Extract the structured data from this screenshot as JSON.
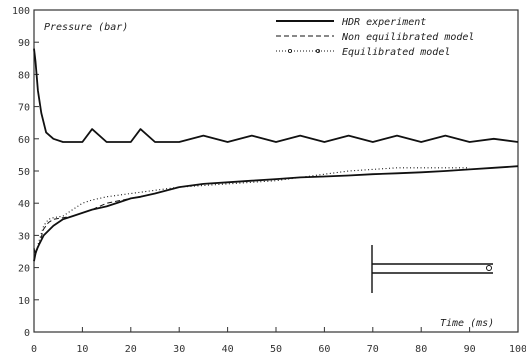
{
  "chart_data": {
    "type": "line",
    "ylabel": "Pressure (bar)",
    "xlabel": "Time (ms)",
    "xlim": [
      0,
      100
    ],
    "ylim": [
      0,
      100
    ],
    "xticks": [
      "0",
      "10",
      "20",
      "30",
      "40",
      "50",
      "60",
      "70",
      "80",
      "90",
      "100"
    ],
    "yticks": [
      "0",
      "10",
      "20",
      "30",
      "40",
      "50",
      "60",
      "70",
      "80",
      "90",
      "100"
    ],
    "grid": false,
    "legend_position": "top-right",
    "series": [
      {
        "name": "HDR experiment",
        "style": "solid",
        "x": [
          0,
          0.3,
          0.8,
          1.5,
          2.5,
          4,
          6,
          8,
          10,
          12,
          15,
          18,
          20,
          22,
          25,
          30,
          35,
          40,
          45,
          50,
          55,
          60,
          65,
          70,
          75,
          80,
          85,
          90,
          95,
          100
        ],
        "y": [
          88,
          84,
          75,
          68,
          62,
          60,
          59,
          59,
          59,
          63,
          59,
          59,
          59,
          63,
          59,
          59,
          61,
          59,
          61,
          59,
          61,
          59,
          61,
          59,
          61,
          59,
          61,
          59,
          60,
          59
        ]
      },
      {
        "name": "HDR experiment",
        "style": "solid",
        "x": [
          0,
          0.4,
          1,
          2,
          4,
          6,
          8,
          10,
          12,
          15,
          18,
          20,
          22,
          25,
          30,
          35,
          40,
          45,
          50,
          55,
          60,
          65,
          70,
          75,
          80,
          85,
          90,
          95,
          100
        ],
        "y": [
          22,
          25,
          27,
          30,
          33,
          35,
          36,
          37,
          38,
          39,
          40.5,
          41.5,
          42,
          43,
          45,
          46,
          46.5,
          47,
          47.5,
          48,
          48.3,
          48.6,
          49,
          49.3,
          49.6,
          50,
          50.5,
          51,
          51.5
        ]
      },
      {
        "name": "Non equilibrated model",
        "style": "dashed",
        "x": [
          0,
          0.3,
          1,
          2,
          3,
          4,
          6,
          8,
          10,
          12,
          15,
          20,
          25,
          30,
          35,
          40,
          45,
          50,
          55,
          60,
          65,
          70,
          75,
          80,
          85,
          90,
          95,
          100
        ],
        "y": [
          26,
          24,
          27,
          32,
          34,
          35,
          35.5,
          36,
          37,
          38,
          40,
          41.5,
          43,
          45,
          46,
          46.5,
          47,
          47.5,
          48,
          48.3,
          48.6,
          49,
          49.3,
          49.6,
          50,
          50.5,
          51,
          51.5
        ]
      },
      {
        "name": "Equilibrated model",
        "style": "dotted",
        "x": [
          0,
          0.3,
          1,
          2,
          3,
          4,
          6,
          8,
          10,
          12,
          15,
          20,
          25,
          30,
          35,
          40,
          45,
          50,
          55,
          60,
          65,
          70,
          75,
          80,
          85,
          90
        ],
        "y": [
          26,
          24,
          28,
          33,
          35,
          35.5,
          36,
          38,
          40,
          41,
          42,
          43,
          44,
          45,
          45.5,
          46,
          46.5,
          47,
          48,
          49,
          50,
          50.5,
          51,
          51,
          51,
          51
        ]
      }
    ],
    "annotations": [
      {
        "text": "HDR experiment"
      },
      {
        "text": "Non equilibrated model"
      },
      {
        "text": "Equilibrated model"
      }
    ]
  }
}
